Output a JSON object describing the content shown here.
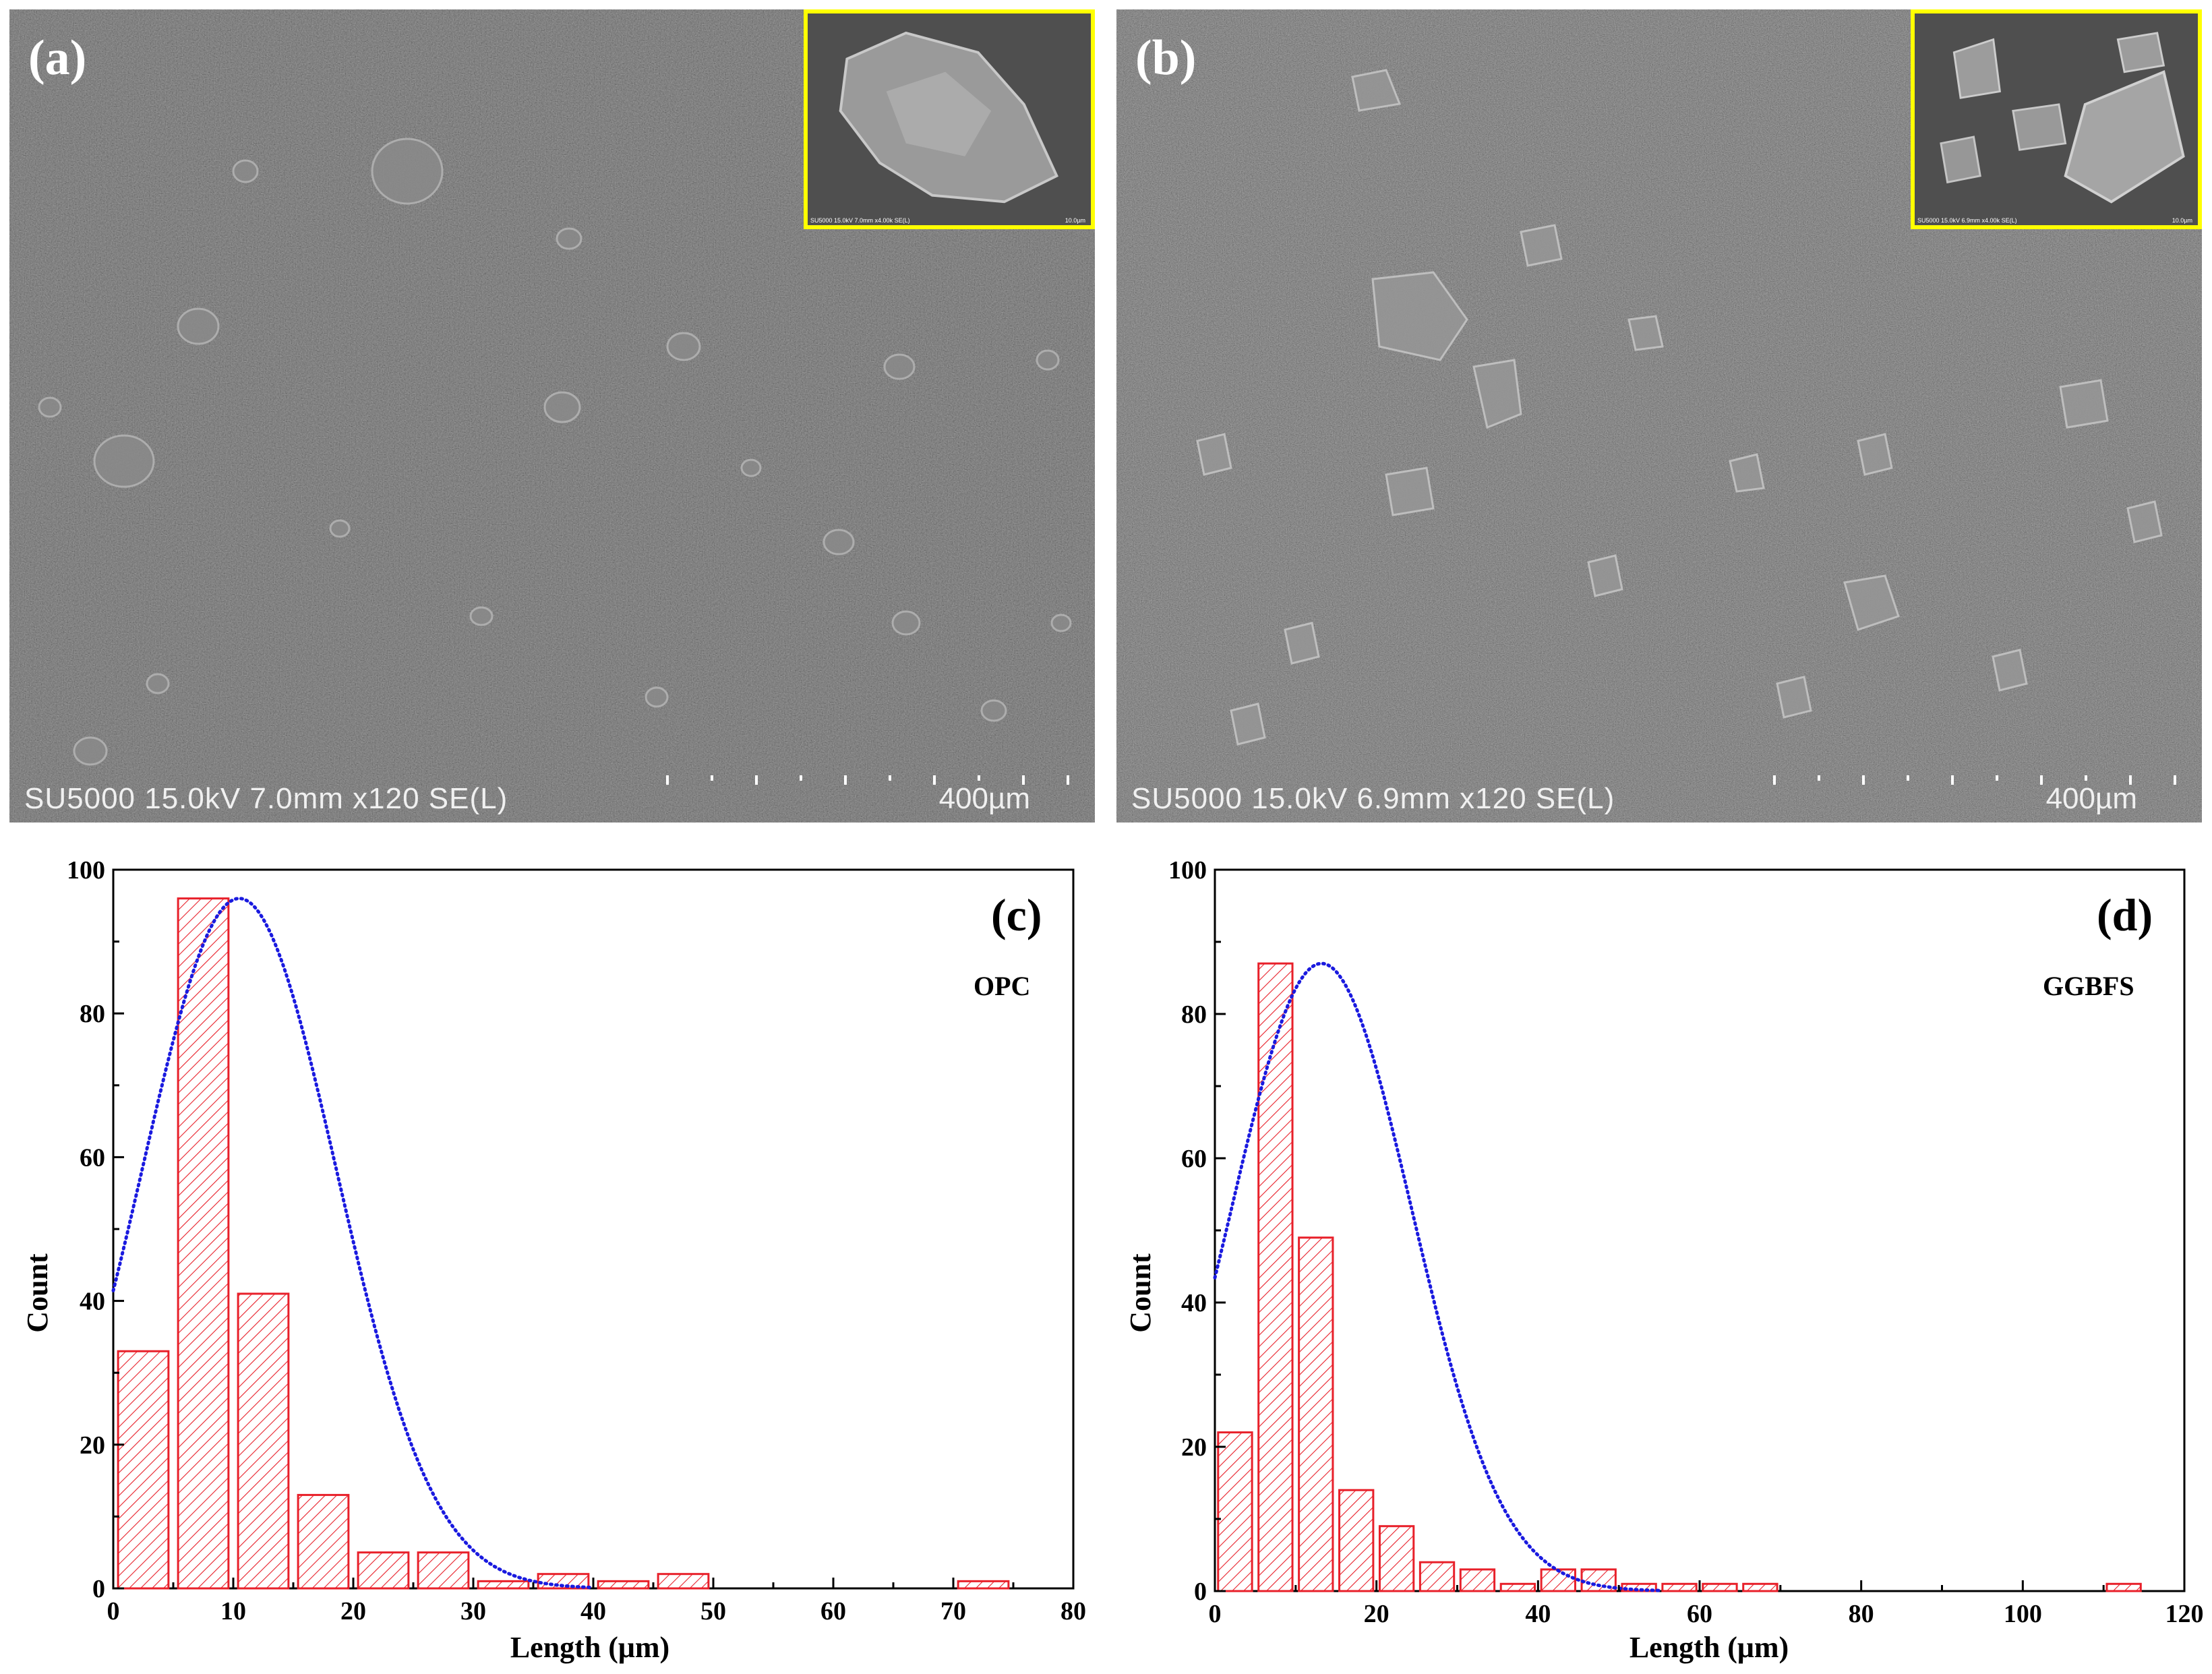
{
  "sem_panels": [
    {
      "letter": "(a)",
      "info": "SU5000 15.0kV 7.0mm x120 SE(L)",
      "scale": "400µm",
      "inset_info": "SU5000 15.0kV 7.0mm x4.00k SE(L)",
      "inset_scale": "10.0µm"
    },
    {
      "letter": "(b)",
      "info": "SU5000 15.0kV 6.9mm x120 SE(L)",
      "scale": "400µm",
      "inset_info": "SU5000 15.0kV 6.9mm x4.00k SE(L)",
      "inset_scale": "10.0µm"
    }
  ],
  "colors": {
    "bar_stroke": "#e8202a",
    "fit_curve": "#1a1adf",
    "inset_border": "#ffff00"
  },
  "chart_data": [
    {
      "type": "bar",
      "panel_letter": "(c)",
      "sample": "OPC",
      "xlabel": "Length (μm)",
      "ylabel": "Count",
      "xlim": [
        0,
        80
      ],
      "ylim": [
        0,
        100
      ],
      "xticks": [
        0,
        10,
        20,
        30,
        40,
        50,
        60,
        70,
        80
      ],
      "yticks": [
        0,
        20,
        40,
        60,
        80,
        100
      ],
      "bin_width": 5,
      "bins": [
        {
          "x0": 0,
          "count": 33
        },
        {
          "x0": 5,
          "count": 96
        },
        {
          "x0": 10,
          "count": 41
        },
        {
          "x0": 15,
          "count": 13
        },
        {
          "x0": 20,
          "count": 5
        },
        {
          "x0": 25,
          "count": 5
        },
        {
          "x0": 30,
          "count": 1
        },
        {
          "x0": 35,
          "count": 2
        },
        {
          "x0": 40,
          "count": 1
        },
        {
          "x0": 45,
          "count": 2
        },
        {
          "x0": 70,
          "count": 1
        }
      ],
      "fit": {
        "shape": "normal",
        "mean": 10.5,
        "sigma": 8.1,
        "peak": 96,
        "x_range": [
          0,
          40
        ]
      }
    },
    {
      "type": "bar",
      "panel_letter": "(d)",
      "sample": "GGBFS",
      "xlabel": "Length (μm)",
      "ylabel": "Count",
      "xlim": [
        0,
        120
      ],
      "ylim": [
        0,
        100
      ],
      "xticks": [
        0,
        20,
        40,
        60,
        80,
        100,
        120
      ],
      "yticks": [
        0,
        20,
        40,
        60,
        80,
        100
      ],
      "bin_width": 5,
      "bins": [
        {
          "x0": 0,
          "count": 22
        },
        {
          "x0": 5,
          "count": 87
        },
        {
          "x0": 10,
          "count": 49
        },
        {
          "x0": 15,
          "count": 14
        },
        {
          "x0": 20,
          "count": 9
        },
        {
          "x0": 25,
          "count": 4
        },
        {
          "x0": 30,
          "count": 3
        },
        {
          "x0": 35,
          "count": 1
        },
        {
          "x0": 40,
          "count": 3
        },
        {
          "x0": 45,
          "count": 3
        },
        {
          "x0": 50,
          "count": 1
        },
        {
          "x0": 55,
          "count": 1
        },
        {
          "x0": 60,
          "count": 1
        },
        {
          "x0": 65,
          "count": 1
        },
        {
          "x0": 110,
          "count": 1
        }
      ],
      "fit": {
        "shape": "normal",
        "mean": 13.2,
        "sigma": 11.2,
        "peak": 87,
        "x_range": [
          0,
          55
        ]
      }
    }
  ]
}
